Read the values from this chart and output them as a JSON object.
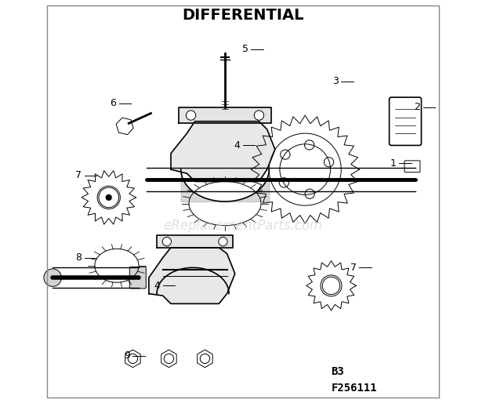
{
  "title": "DIFFERENTIAL",
  "subtitle_line1": "B3",
  "subtitle_line2": "F256111",
  "watermark": "eReplacementParts.com",
  "bg_color": "#ffffff",
  "fg_color": "#000000",
  "title_fontsize": 14,
  "title_fontweight": "bold",
  "watermark_color": "#cccccc",
  "watermark_fontsize": 12,
  "fig_width": 6.2,
  "fig_height": 5.14,
  "dpi": 100
}
